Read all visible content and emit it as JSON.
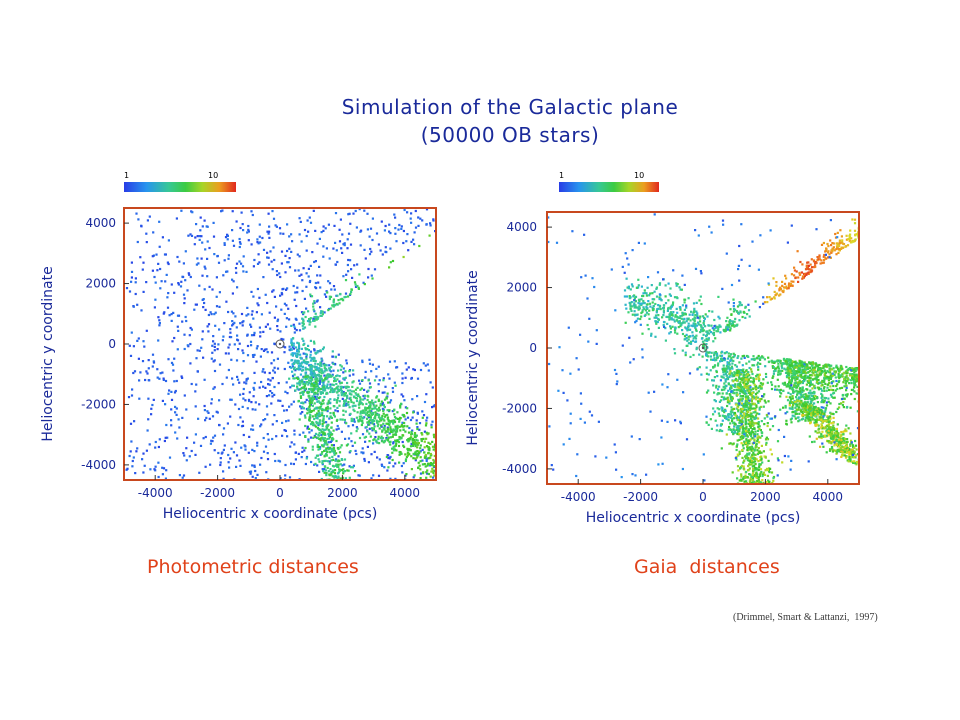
{
  "title": {
    "line1": "Simulation of the Galactic plane",
    "line2": "(50000  OB stars)"
  },
  "credit": "(Drimmel, Smart & Lattanzi,  1997)",
  "colors": {
    "text": "#1a2a9a",
    "frame": "#c8481e",
    "subtitle": "#e0421a"
  },
  "chart_data": [
    {
      "type": "heatmap",
      "subtitle": "Photometric distances",
      "xlabel": "Heliocentric x coordinate (pcs)",
      "ylabel": "Heliocentric y coordinate",
      "xlim": [
        -5000,
        5000
      ],
      "ylim": [
        -4500,
        4500
      ],
      "xticks": [
        -4000,
        -2000,
        0,
        2000,
        4000
      ],
      "yticks": [
        4000,
        2000,
        0,
        -2000,
        -4000
      ],
      "colorbar": {
        "labels": [
          "1",
          "10"
        ],
        "scale": "log"
      },
      "sun_marker": [
        0,
        0
      ],
      "grid": false
    },
    {
      "type": "heatmap",
      "subtitle": "Gaia  distances",
      "xlabel": "Heliocentric x coordinate (pcs)",
      "ylabel": "Heliocentric y coordinate",
      "xlim": [
        -5000,
        5000
      ],
      "ylim": [
        -4500,
        4500
      ],
      "xticks": [
        -4000,
        -2000,
        0,
        2000,
        4000
      ],
      "yticks": [
        4000,
        2000,
        0,
        -2000,
        -4000
      ],
      "colorbar": {
        "labels": [
          "1",
          "10"
        ],
        "scale": "log"
      },
      "sun_marker": [
        0,
        0
      ],
      "grid": false
    }
  ]
}
